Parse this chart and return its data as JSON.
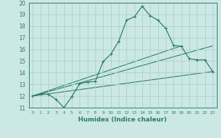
{
  "xlabel": "Humidex (Indice chaleur)",
  "xlim": [
    -0.5,
    23.5
  ],
  "ylim": [
    11,
    20
  ],
  "xticks": [
    0,
    1,
    2,
    3,
    4,
    5,
    6,
    7,
    8,
    9,
    10,
    11,
    12,
    13,
    14,
    15,
    16,
    17,
    18,
    19,
    20,
    21,
    22,
    23
  ],
  "yticks": [
    11,
    12,
    13,
    14,
    15,
    16,
    17,
    18,
    19,
    20
  ],
  "bg_color": "#cce8e4",
  "grid_color": "#aaced0",
  "line_color": "#2a7a6a",
  "line1_x": [
    0,
    1,
    2,
    3,
    4,
    5,
    6,
    7,
    8,
    9,
    10,
    11,
    12,
    13,
    14,
    15,
    16,
    17,
    18,
    19,
    20,
    21,
    22,
    23
  ],
  "line1_y": [
    12.0,
    12.2,
    12.15,
    11.7,
    11.0,
    11.95,
    13.05,
    13.2,
    13.25,
    14.95,
    15.6,
    16.7,
    18.5,
    18.8,
    19.7,
    18.9,
    18.5,
    17.8,
    16.35,
    16.25,
    15.2,
    15.1,
    15.1,
    14.1
  ],
  "line2_x": [
    0,
    23
  ],
  "line2_y": [
    12.0,
    16.3
  ],
  "line3_x": [
    0,
    23
  ],
  "line3_y": [
    12.0,
    14.1
  ],
  "line4_x": [
    0,
    19
  ],
  "line4_y": [
    12.0,
    16.3
  ]
}
